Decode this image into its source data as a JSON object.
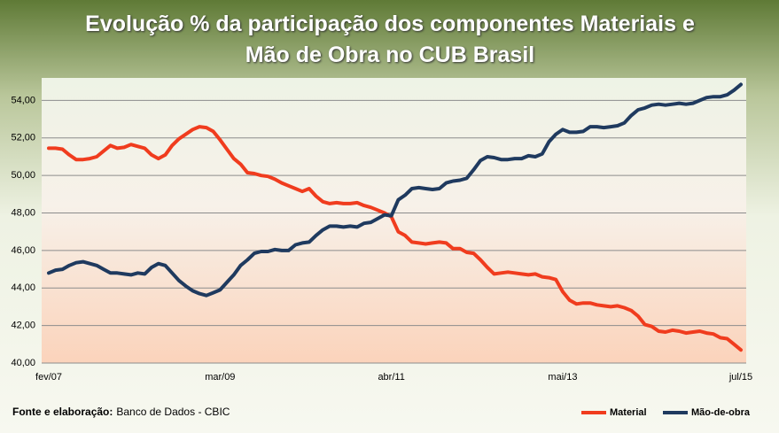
{
  "chart_data": {
    "type": "line",
    "title": "Evolução % da participação dos componentes Materiais e Mão de Obra no CUB Brasil",
    "source_label": "Fonte e elaboração:",
    "source": "Banco de Dados - CBIC",
    "categories": [
      "fev/07",
      null,
      null,
      null,
      null,
      null,
      null,
      null,
      null,
      null,
      null,
      null,
      null,
      null,
      null,
      null,
      null,
      null,
      null,
      null,
      null,
      null,
      null,
      null,
      null,
      "mar/09",
      null,
      null,
      null,
      null,
      null,
      null,
      null,
      null,
      null,
      null,
      null,
      null,
      null,
      null,
      null,
      null,
      null,
      null,
      null,
      null,
      null,
      null,
      null,
      null,
      "abr/11",
      null,
      null,
      null,
      null,
      null,
      null,
      null,
      null,
      null,
      null,
      null,
      null,
      null,
      null,
      null,
      null,
      null,
      null,
      null,
      null,
      null,
      null,
      null,
      null,
      "mai/13",
      null,
      null,
      null,
      null,
      null,
      null,
      null,
      null,
      null,
      null,
      null,
      null,
      null,
      null,
      null,
      null,
      null,
      null,
      null,
      null,
      null,
      null,
      null,
      null,
      null,
      "jul/15"
    ],
    "series": [
      {
        "name": "Material",
        "color": "#f03c1e",
        "values": [
          51.45,
          51.45,
          51.4,
          51.1,
          50.85,
          50.85,
          50.9,
          51.0,
          51.3,
          51.6,
          51.45,
          51.5,
          51.65,
          51.55,
          51.45,
          51.1,
          50.9,
          51.1,
          51.6,
          51.95,
          52.2,
          52.45,
          52.6,
          52.55,
          52.35,
          51.9,
          51.4,
          50.9,
          50.6,
          50.15,
          50.1,
          50.0,
          49.95,
          49.8,
          49.6,
          49.45,
          49.3,
          49.15,
          49.3,
          48.9,
          48.6,
          48.5,
          48.55,
          48.5,
          48.5,
          48.55,
          48.4,
          48.3,
          48.15,
          48.0,
          47.8,
          47.0,
          46.8,
          46.45,
          46.4,
          46.35,
          46.4,
          46.45,
          46.4,
          46.1,
          46.1,
          45.9,
          45.85,
          45.5,
          45.1,
          44.75,
          44.8,
          44.85,
          44.8,
          44.75,
          44.7,
          44.75,
          44.6,
          44.55,
          44.45,
          43.8,
          43.35,
          43.15,
          43.2,
          43.2,
          43.1,
          43.05,
          43.0,
          43.05,
          42.95,
          42.8,
          42.5,
          42.05,
          41.95,
          41.7,
          41.65,
          41.75,
          41.7,
          41.6,
          41.65,
          41.7,
          41.6,
          41.55,
          41.35,
          41.3,
          41.0,
          40.7
        ]
      },
      {
        "name": "Mão-de-obra",
        "color": "#1f3a5f",
        "values": [
          44.8,
          44.95,
          45.0,
          45.2,
          45.35,
          45.4,
          45.3,
          45.2,
          45.0,
          44.8,
          44.8,
          44.75,
          44.7,
          44.8,
          44.75,
          45.1,
          45.3,
          45.2,
          44.8,
          44.4,
          44.1,
          43.85,
          43.7,
          43.6,
          43.75,
          43.9,
          44.3,
          44.7,
          45.2,
          45.5,
          45.85,
          45.95,
          45.95,
          46.05,
          46.0,
          46.0,
          46.3,
          46.4,
          46.45,
          46.8,
          47.1,
          47.3,
          47.3,
          47.25,
          47.3,
          47.25,
          47.45,
          47.5,
          47.7,
          47.9,
          47.85,
          48.7,
          48.95,
          49.3,
          49.35,
          49.3,
          49.25,
          49.3,
          49.6,
          49.7,
          49.75,
          49.85,
          50.3,
          50.8,
          51.0,
          50.95,
          50.85,
          50.85,
          50.9,
          50.9,
          51.05,
          51.0,
          51.15,
          51.8,
          52.2,
          52.45,
          52.3,
          52.3,
          52.35,
          52.6,
          52.6,
          52.55,
          52.6,
          52.65,
          52.8,
          53.2,
          53.5,
          53.6,
          53.75,
          53.8,
          53.75,
          53.8,
          53.85,
          53.8,
          53.85,
          54.0,
          54.15,
          54.2,
          54.2,
          54.3,
          54.55,
          54.85
        ]
      }
    ],
    "ylim": [
      40,
      55.2
    ],
    "yticks": [
      {
        "value": 40,
        "label": "40,00"
      },
      {
        "value": 42,
        "label": "42,00"
      },
      {
        "value": 44,
        "label": "44,00"
      },
      {
        "value": 46,
        "label": "46,00"
      },
      {
        "value": 48,
        "label": "48,00"
      },
      {
        "value": 50,
        "label": "50,00"
      },
      {
        "value": 52,
        "label": "52,00"
      },
      {
        "value": 54,
        "label": "54,00"
      }
    ],
    "grid": true,
    "legend": "bottom-right"
  }
}
